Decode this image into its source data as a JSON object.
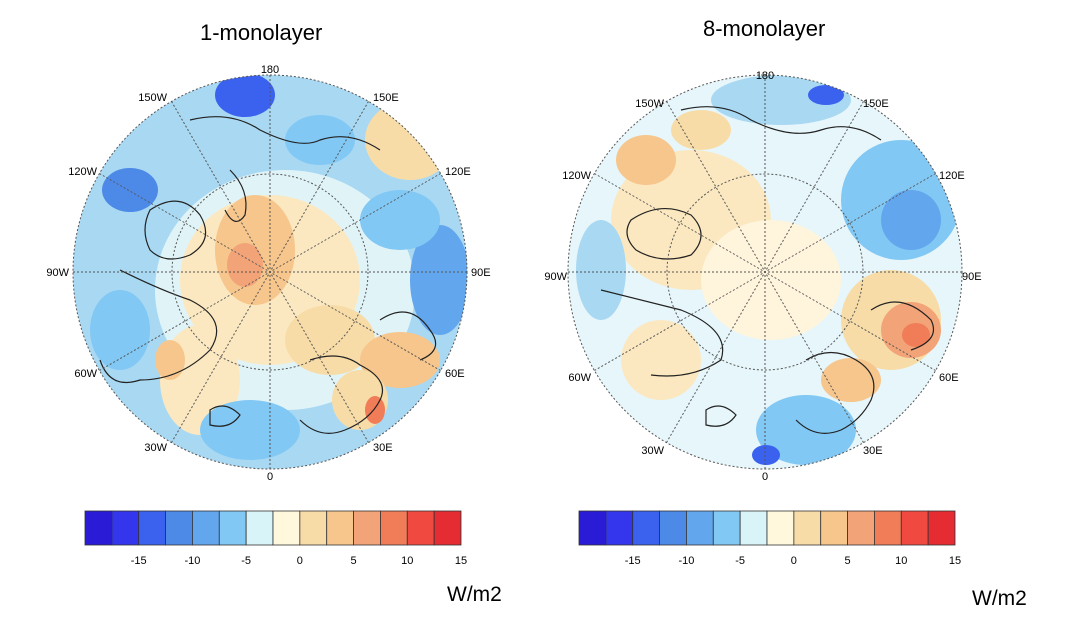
{
  "colors": [
    "#2a1cd6",
    "#3336ec",
    "#3a62ee",
    "#4d8ae8",
    "#62a6ee",
    "#82c8f4",
    "#d8f4f8",
    "#fff8dc",
    "#f8dca8",
    "#f6c68c",
    "#f2a478",
    "#f07c58",
    "#f04a40",
    "#e42c32"
  ],
  "tick_labels": [
    "-15",
    "-10",
    "-5",
    "0",
    "5",
    "10",
    "15"
  ],
  "panels": [
    {
      "title": "1-monolayer",
      "units": "W/m2",
      "lon_labels": {
        "180": "180",
        "150E": "150E",
        "120E": "120E",
        "90E": "90E",
        "60E": "60E",
        "30E": "30E",
        "0": "0",
        "30W": "30W",
        "60W": "60W",
        "90W": "90W",
        "120W": "120W",
        "150W": "150W"
      }
    },
    {
      "title": "8-monolayer",
      "units": "W/m2",
      "lon_labels": {
        "180": "180",
        "150E": "150E",
        "120E": "120E",
        "90E": "90E",
        "60E": "60E",
        "30E": "30E",
        "0": "0",
        "30W": "30W",
        "60W": "60W",
        "90W": "90W",
        "120W": "120W",
        "150W": "150W"
      }
    }
  ]
}
